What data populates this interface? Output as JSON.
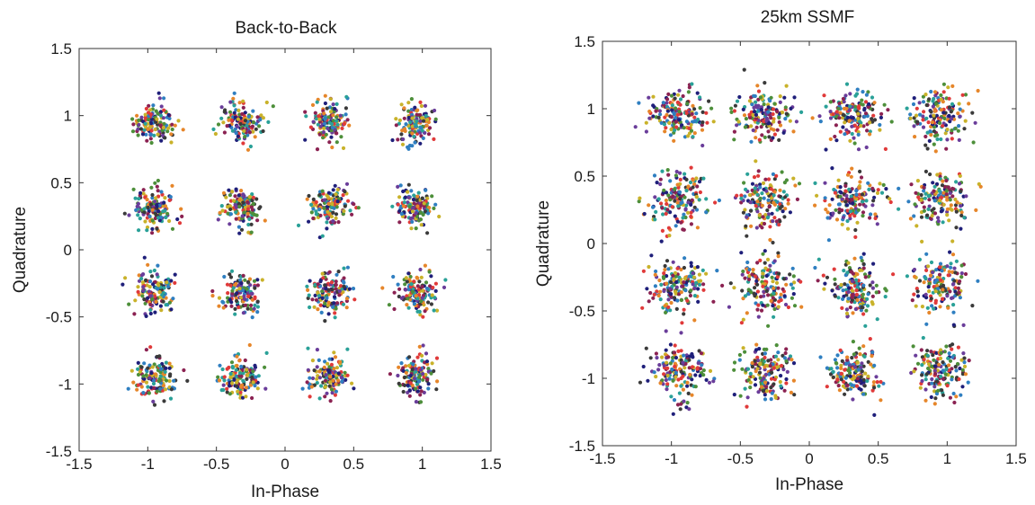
{
  "chart_data": [
    {
      "type": "scatter",
      "title": "Back-to-Back",
      "xlabel": "In-Phase",
      "ylabel": "Quadrature",
      "xlim": [
        -1.5,
        1.5
      ],
      "ylim": [
        -1.5,
        1.5
      ],
      "xticks": [
        "-1.5",
        "-1",
        "-0.5",
        "0",
        "0.5",
        "1",
        "1.5"
      ],
      "yticks": [
        "-1.5",
        "-1",
        "-0.5",
        "0",
        "0.5",
        "1",
        "1.5"
      ],
      "grid": false,
      "constellation": "16-QAM",
      "cluster_centers_x": [
        -0.95,
        -0.32,
        0.32,
        0.95
      ],
      "cluster_centers_y": [
        0.95,
        0.32,
        -0.32,
        -0.95
      ],
      "noise_std": 0.075,
      "points_per_cluster": 130
    },
    {
      "type": "scatter",
      "title": "25km SSMF",
      "xlabel": "In-Phase",
      "ylabel": "Quadrature",
      "xlim": [
        -1.5,
        1.5
      ],
      "ylim": [
        -1.5,
        1.5
      ],
      "xticks": [
        "-1.5",
        "-1",
        "-0.5",
        "0",
        "0.5",
        "1",
        "1.5"
      ],
      "yticks": [
        "-1.5",
        "-1",
        "-0.5",
        "0",
        "0.5",
        "1",
        "1.5"
      ],
      "grid": false,
      "constellation": "16-QAM",
      "cluster_centers_x": [
        -0.95,
        -0.32,
        0.32,
        0.95
      ],
      "cluster_centers_y": [
        0.95,
        0.32,
        -0.32,
        -0.95
      ],
      "noise_std": 0.1,
      "points_per_cluster": 160
    }
  ],
  "point_colors": [
    "#1f1f7a",
    "#e03a3a",
    "#2aa198",
    "#3a3a3a",
    "#6a3d9a",
    "#c9b22a",
    "#2f7fc1",
    "#4d8f3a",
    "#8b2252",
    "#e6862a"
  ]
}
